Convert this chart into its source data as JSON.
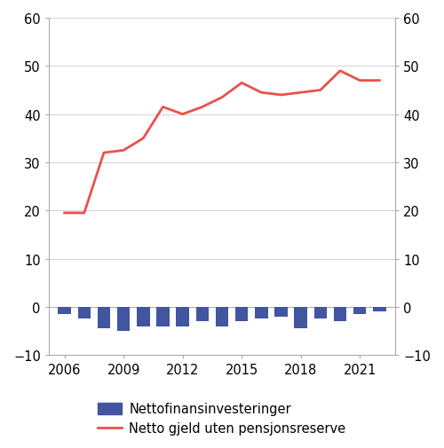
{
  "years": [
    2006,
    2007,
    2008,
    2009,
    2010,
    2011,
    2012,
    2013,
    2014,
    2015,
    2016,
    2017,
    2018,
    2019,
    2020,
    2021,
    2022
  ],
  "bar_values": [
    -1.5,
    -2.5,
    -4.5,
    -5.0,
    -4.0,
    -4.0,
    -4.0,
    -3.0,
    -4.0,
    -3.0,
    -2.5,
    -2.0,
    -4.5,
    -2.5,
    -3.0,
    -1.5,
    -1.0
  ],
  "line_years": [
    2006,
    2007,
    2008,
    2009,
    2010,
    2011,
    2012,
    2013,
    2014,
    2015,
    2016,
    2017,
    2018,
    2019,
    2020,
    2021,
    2022
  ],
  "line_values": [
    19.5,
    19.5,
    32.0,
    32.5,
    35.0,
    41.5,
    40.0,
    41.5,
    43.5,
    46.5,
    44.5,
    44.0,
    44.5,
    45.0,
    49.0,
    47.0,
    47.0
  ],
  "bar_color": "#4155a0",
  "line_color": "#e8524a",
  "ylim": [
    -10,
    60
  ],
  "yticks": [
    -10,
    0,
    10,
    20,
    30,
    40,
    50,
    60
  ],
  "xticks": [
    2006,
    2009,
    2012,
    2015,
    2018,
    2021
  ],
  "xlim_left": 2005.2,
  "xlim_right": 2022.8,
  "legend_bar_label": "Nettofinansinvesteringer",
  "legend_line_label": "Netto gjeld uten pensjonsreserve",
  "background_color": "#ffffff",
  "spine_color": "#aaaaaa",
  "tick_color": "#aaaaaa",
  "grid_color": "#cccccc",
  "tick_label_fontsize": 10.5,
  "legend_fontsize": 10.5,
  "bar_width": 0.65,
  "line_width": 2.0
}
